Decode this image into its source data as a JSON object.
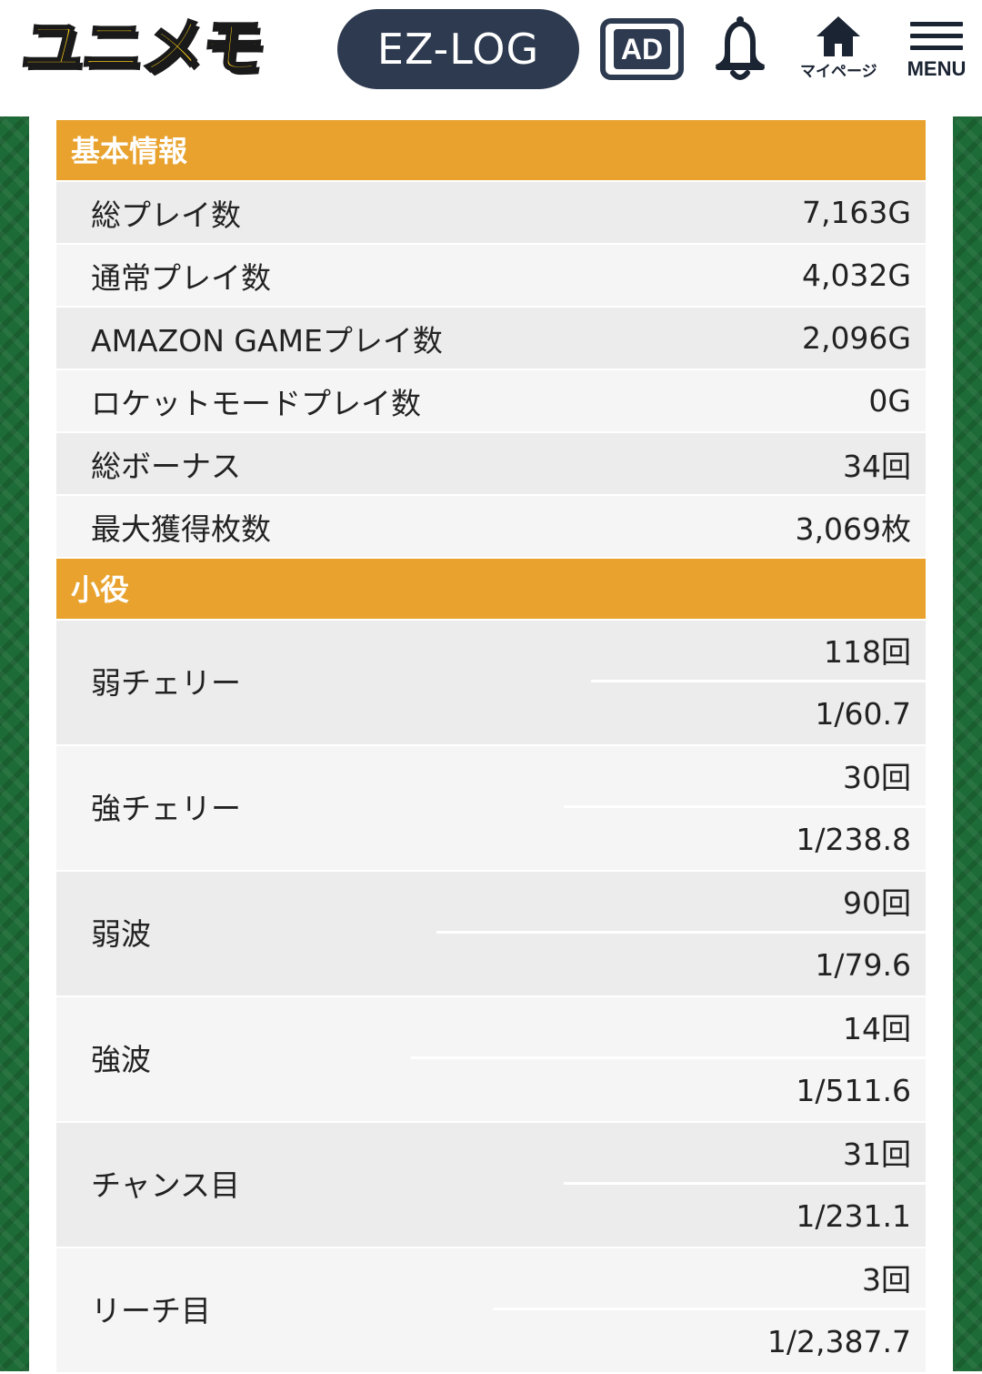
{
  "header": {
    "logo_text": "ユニメモ",
    "ezlog_label": "EZ-LOG",
    "ad_label": "AD",
    "mypage_label": "マイページ",
    "menu_label": "MENU"
  },
  "colors": {
    "section_header": "#e8a22d",
    "row_dark": "#ececec",
    "row_light": "#f5f5f5",
    "side_pattern": "#1d6b36",
    "header_pill": "#2e3a4f"
  },
  "basic": {
    "title": "基本情報",
    "rows": [
      {
        "label": "総プレイ数",
        "value": "7,163G"
      },
      {
        "label": "通常プレイ数",
        "value": "4,032G"
      },
      {
        "label": "AMAZON GAMEプレイ数",
        "value": "2,096G"
      },
      {
        "label": "ロケットモードプレイ数",
        "value": "0G"
      },
      {
        "label": "総ボーナス",
        "value": "34回"
      },
      {
        "label": "最大獲得枚数",
        "value": "3,069枚"
      }
    ]
  },
  "koyaku": {
    "title": "小役",
    "rows": [
      {
        "label": "弱チェリー",
        "count": "118回",
        "prob": "1/60.7"
      },
      {
        "label": "強チェリー",
        "count": "30回",
        "prob": "1/238.8"
      },
      {
        "label": "弱波",
        "count": "90回",
        "prob": "1/79.6"
      },
      {
        "label": "強波",
        "count": "14回",
        "prob": "1/511.6"
      },
      {
        "label": "チャンス目",
        "count": "31回",
        "prob": "1/231.1"
      },
      {
        "label": "リーチ目",
        "count": "3回",
        "prob": "1/2,387.7"
      }
    ]
  }
}
